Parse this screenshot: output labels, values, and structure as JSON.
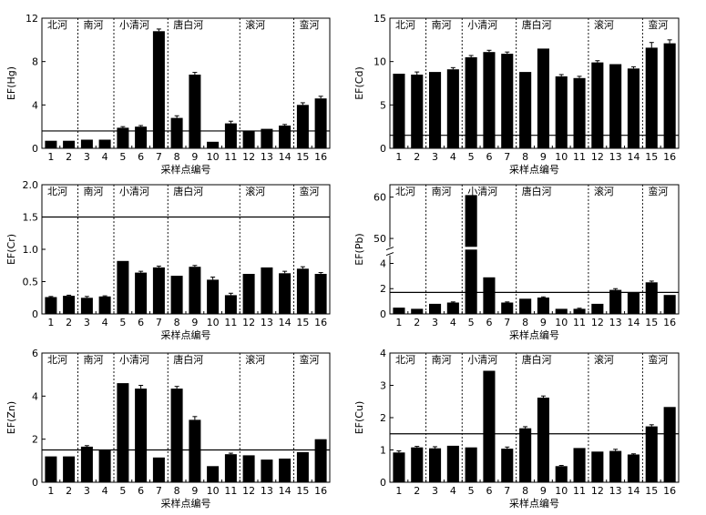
{
  "panels": [
    {
      "id": "hg",
      "ylabel": "EF(Hg)",
      "xlabel": "采样点编号",
      "ylim": [
        0,
        12
      ],
      "yticks": [
        "0",
        "4",
        "8",
        "12"
      ],
      "ytick_values": [
        0,
        4,
        8,
        12
      ],
      "categories": [
        "1",
        "2",
        "3",
        "4",
        "5",
        "6",
        "7",
        "8",
        "9",
        "10",
        "11",
        "12",
        "13",
        "14",
        "15",
        "16"
      ],
      "values": [
        0.7,
        0.7,
        0.8,
        0.8,
        1.9,
        2.0,
        10.8,
        2.8,
        6.8,
        0.6,
        2.3,
        1.6,
        1.8,
        2.1,
        4.0,
        4.6
      ],
      "errors": [
        0,
        0,
        0,
        0,
        0.1,
        0.1,
        0.2,
        0.2,
        0.2,
        0,
        0.2,
        0,
        0,
        0.1,
        0.2,
        0.2
      ],
      "reference": 1.6,
      "regions": [
        "北河",
        "南河",
        "小清河",
        "唐白河",
        "滚河",
        "蛮河"
      ],
      "dividers_after": [
        2,
        4,
        7,
        11,
        14
      ]
    },
    {
      "id": "cd",
      "ylabel": "EF(Cd)",
      "xlabel": "采样点编号",
      "ylim": [
        0,
        15
      ],
      "yticks": [
        "0",
        "5",
        "10",
        "15"
      ],
      "ytick_values": [
        0,
        5,
        10,
        15
      ],
      "categories": [
        "1",
        "2",
        "3",
        "4",
        "5",
        "6",
        "7",
        "8",
        "9",
        "10",
        "11",
        "12",
        "13",
        "14",
        "15",
        "16"
      ],
      "values": [
        8.6,
        8.5,
        8.8,
        9.1,
        10.5,
        11.1,
        10.9,
        8.8,
        11.5,
        8.3,
        8.1,
        9.9,
        9.7,
        9.2,
        11.6,
        12.1
      ],
      "errors": [
        0,
        0.3,
        0,
        0.2,
        0.2,
        0.2,
        0.2,
        0,
        0,
        0.2,
        0.2,
        0.2,
        0,
        0.2,
        0.6,
        0.4
      ],
      "reference": 1.5,
      "regions": [
        "北河",
        "南河",
        "小清河",
        "唐白河",
        "滚河",
        "蛮河"
      ],
      "dividers_after": [
        2,
        4,
        7,
        11,
        14
      ]
    },
    {
      "id": "cr",
      "ylabel": "EF(Cr)",
      "xlabel": "采样点编号",
      "ylim": [
        0,
        2.0
      ],
      "yticks": [
        "0",
        "0.5",
        "1.0",
        "1.5",
        "2.0"
      ],
      "ytick_values": [
        0,
        0.5,
        1.0,
        1.5,
        2.0
      ],
      "categories": [
        "1",
        "2",
        "3",
        "4",
        "5",
        "6",
        "7",
        "8",
        "9",
        "10",
        "11",
        "12",
        "13",
        "14",
        "15",
        "16"
      ],
      "values": [
        0.26,
        0.28,
        0.25,
        0.27,
        0.82,
        0.64,
        0.72,
        0.59,
        0.73,
        0.53,
        0.29,
        0.62,
        0.72,
        0.63,
        0.7,
        0.62
      ],
      "errors": [
        0.01,
        0.01,
        0.02,
        0.01,
        0,
        0.02,
        0.02,
        0,
        0.02,
        0.04,
        0.03,
        0,
        0,
        0.03,
        0.03,
        0.02
      ],
      "reference": 1.5,
      "regions": [
        "北河",
        "南河",
        "小清河",
        "唐白河",
        "滚河",
        "蛮河"
      ],
      "dividers_after": [
        2,
        4,
        7,
        11,
        14
      ]
    },
    {
      "id": "pb",
      "ylabel": "EF(Pb)",
      "xlabel": "采样点编号",
      "broken_axis": true,
      "ylim": [
        0,
        60
      ],
      "yticks": [
        "0",
        "2",
        "4",
        "50",
        "60"
      ],
      "ytick_values": [
        0,
        2,
        4,
        50,
        60
      ],
      "categories": [
        "1",
        "2",
        "3",
        "4",
        "5",
        "6",
        "7",
        "8",
        "9",
        "10",
        "11",
        "12",
        "13",
        "14",
        "15",
        "16"
      ],
      "values": [
        0.5,
        0.4,
        0.8,
        0.9,
        60.5,
        2.9,
        0.9,
        1.2,
        1.3,
        0.4,
        0.4,
        0.8,
        1.9,
        1.7,
        2.5,
        1.5
      ],
      "errors": [
        0,
        0,
        0,
        0.05,
        0,
        0,
        0.05,
        0,
        0.05,
        0,
        0.05,
        0,
        0.1,
        0,
        0.1,
        0
      ],
      "reference": 1.7,
      "regions": [
        "北河",
        "南河",
        "小清河",
        "唐白河",
        "滚河",
        "蛮河"
      ],
      "dividers_after": [
        2,
        4,
        7,
        11,
        14
      ]
    },
    {
      "id": "zn",
      "ylabel": "EF(Zn)",
      "xlabel": "采样点编号",
      "ylim": [
        0,
        6
      ],
      "yticks": [
        "0",
        "2",
        "4",
        "6"
      ],
      "ytick_values": [
        0,
        2,
        4,
        6
      ],
      "categories": [
        "1",
        "2",
        "3",
        "4",
        "5",
        "6",
        "7",
        "8",
        "9",
        "10",
        "11",
        "12",
        "13",
        "14",
        "15",
        "16"
      ],
      "values": [
        1.2,
        1.2,
        1.65,
        1.5,
        4.6,
        4.35,
        1.15,
        4.35,
        2.9,
        0.75,
        1.3,
        1.25,
        1.05,
        1.1,
        1.4,
        2.0
      ],
      "errors": [
        0,
        0,
        0.05,
        0,
        0,
        0.15,
        0,
        0.1,
        0.15,
        0,
        0.05,
        0,
        0,
        0,
        0,
        0
      ],
      "reference": 1.5,
      "regions": [
        "北河",
        "南河",
        "小清河",
        "唐白河",
        "滚河",
        "蛮河"
      ],
      "dividers_after": [
        2,
        4,
        7,
        11,
        14
      ]
    },
    {
      "id": "cu",
      "ylabel": "EF(Cu)",
      "xlabel": "采样点编号",
      "ylim": [
        0,
        4
      ],
      "yticks": [
        "0",
        "1",
        "2",
        "3",
        "4"
      ],
      "ytick_values": [
        0,
        1,
        2,
        3,
        4
      ],
      "categories": [
        "1",
        "2",
        "3",
        "4",
        "5",
        "6",
        "7",
        "8",
        "9",
        "10",
        "11",
        "12",
        "13",
        "14",
        "15",
        "16"
      ],
      "values": [
        0.92,
        1.08,
        1.05,
        1.13,
        1.08,
        3.45,
        1.04,
        1.67,
        2.62,
        0.5,
        1.06,
        0.95,
        0.97,
        0.86,
        1.73,
        2.33
      ],
      "errors": [
        0.05,
        0.03,
        0.05,
        0,
        0,
        0,
        0.05,
        0.05,
        0.05,
        0.02,
        0,
        0,
        0.05,
        0.02,
        0.05,
        0
      ],
      "reference": 1.5,
      "regions": [
        "北河",
        "南河",
        "小清河",
        "唐白河",
        "滚河",
        "蛮河"
      ],
      "dividers_after": [
        2,
        4,
        7,
        11,
        14
      ]
    }
  ],
  "chart_data": [
    {
      "type": "bar",
      "title": "",
      "xlabel": "采样点编号",
      "ylabel": "EF(Hg)",
      "ylim": [
        0,
        12
      ],
      "categories": [
        "1",
        "2",
        "3",
        "4",
        "5",
        "6",
        "7",
        "8",
        "9",
        "10",
        "11",
        "12",
        "13",
        "14",
        "15",
        "16"
      ],
      "values": [
        0.7,
        0.7,
        0.8,
        0.8,
        1.9,
        2.0,
        10.8,
        2.8,
        6.8,
        0.6,
        2.3,
        1.6,
        1.8,
        2.1,
        4.0,
        4.6
      ]
    },
    {
      "type": "bar",
      "title": "",
      "xlabel": "采样点编号",
      "ylabel": "EF(Cd)",
      "ylim": [
        0,
        15
      ],
      "categories": [
        "1",
        "2",
        "3",
        "4",
        "5",
        "6",
        "7",
        "8",
        "9",
        "10",
        "11",
        "12",
        "13",
        "14",
        "15",
        "16"
      ],
      "values": [
        8.6,
        8.5,
        8.8,
        9.1,
        10.5,
        11.1,
        10.9,
        8.8,
        11.5,
        8.3,
        8.1,
        9.9,
        9.7,
        9.2,
        11.6,
        12.1
      ]
    },
    {
      "type": "bar",
      "title": "",
      "xlabel": "采样点编号",
      "ylabel": "EF(Cr)",
      "ylim": [
        0,
        2.0
      ],
      "categories": [
        "1",
        "2",
        "3",
        "4",
        "5",
        "6",
        "7",
        "8",
        "9",
        "10",
        "11",
        "12",
        "13",
        "14",
        "15",
        "16"
      ],
      "values": [
        0.26,
        0.28,
        0.25,
        0.27,
        0.82,
        0.64,
        0.72,
        0.59,
        0.73,
        0.53,
        0.29,
        0.62,
        0.72,
        0.63,
        0.7,
        0.62
      ]
    },
    {
      "type": "bar",
      "title": "",
      "xlabel": "采样点编号",
      "ylabel": "EF(Pb)",
      "ylim": [
        0,
        60
      ],
      "categories": [
        "1",
        "2",
        "3",
        "4",
        "5",
        "6",
        "7",
        "8",
        "9",
        "10",
        "11",
        "12",
        "13",
        "14",
        "15",
        "16"
      ],
      "values": [
        0.5,
        0.4,
        0.8,
        0.9,
        60.5,
        2.9,
        0.9,
        1.2,
        1.3,
        0.4,
        0.4,
        0.8,
        1.9,
        1.7,
        2.5,
        1.5
      ]
    },
    {
      "type": "bar",
      "title": "",
      "xlabel": "采样点编号",
      "ylabel": "EF(Zn)",
      "ylim": [
        0,
        6
      ],
      "categories": [
        "1",
        "2",
        "3",
        "4",
        "5",
        "6",
        "7",
        "8",
        "9",
        "10",
        "11",
        "12",
        "13",
        "14",
        "15",
        "16"
      ],
      "values": [
        1.2,
        1.2,
        1.65,
        1.5,
        4.6,
        4.35,
        1.15,
        4.35,
        2.9,
        0.75,
        1.3,
        1.25,
        1.05,
        1.1,
        1.4,
        2.0
      ]
    },
    {
      "type": "bar",
      "title": "",
      "xlabel": "采样点编号",
      "ylabel": "EF(Cu)",
      "ylim": [
        0,
        4
      ],
      "categories": [
        "1",
        "2",
        "3",
        "4",
        "5",
        "6",
        "7",
        "8",
        "9",
        "10",
        "11",
        "12",
        "13",
        "14",
        "15",
        "16"
      ],
      "values": [
        0.92,
        1.08,
        1.05,
        1.13,
        1.08,
        3.45,
        1.04,
        1.67,
        2.62,
        0.5,
        1.06,
        0.95,
        0.97,
        0.86,
        1.73,
        2.33
      ]
    }
  ]
}
